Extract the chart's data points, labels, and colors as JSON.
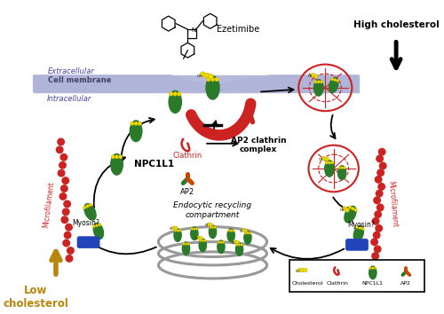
{
  "bg_color": "#ffffff",
  "ezetimibe_label": "Ezetimibe",
  "high_cholesterol_label": "High cholesterol",
  "low_cholesterol_label": "Low\ncholesterol",
  "extracellular_label": "Extracellular",
  "cell_membrane_label": "Cell membrane",
  "intracellular_label": "Intracellular",
  "npc1l1_label": "NPC1L1",
  "clathrin_label": "Clathrin",
  "ap2_label": "AP2",
  "ap2_clathrin_label": "AP2 clathrin\ncomplex",
  "myosin_label": "Myosin?",
  "microfilament_label": "Microfilament",
  "endocytic_label": "Endocytic recycling\ncompartment",
  "legend_cholesterol": "Cholesterol",
  "legend_clathrin": "Clathrin",
  "legend_npc1l1": "NPC1L1",
  "legend_ap2": "AP2",
  "membrane_color": "#b0b4d8",
  "green_color": "#2a7a2a",
  "red_color": "#cc2222",
  "yellow_color": "#eedd00",
  "gold_color": "#b8860b",
  "blue_color": "#2244bb",
  "gray_color": "#999999",
  "orange_red": "#cc4400"
}
